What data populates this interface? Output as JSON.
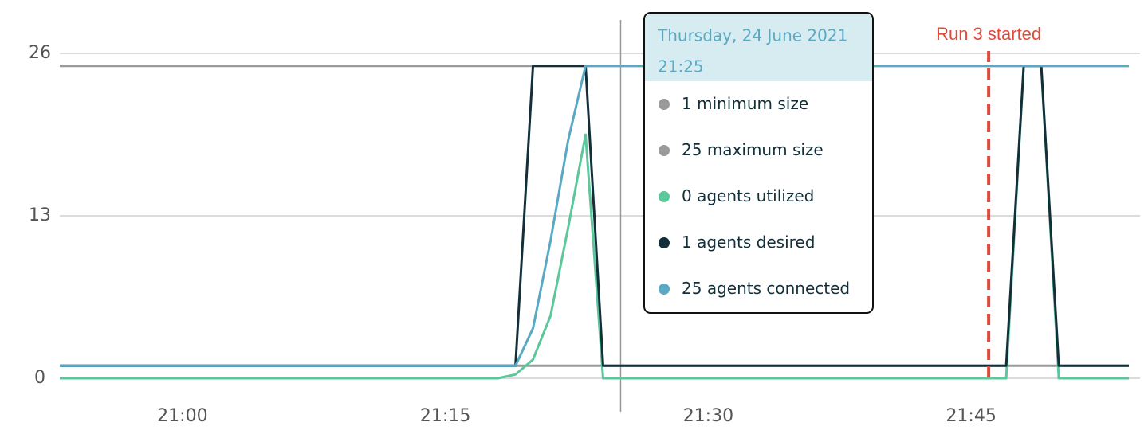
{
  "chart_data": {
    "type": "line",
    "x": [
      "20:53",
      "21:18",
      "21:19",
      "21:20",
      "21:21",
      "21:22",
      "21:23",
      "21:24",
      "21:25",
      "21:47",
      "21:48",
      "21:49",
      "21:50",
      "21:54"
    ],
    "series": [
      {
        "name": "minimum size",
        "color": "#9a9a9a",
        "values": [
          1,
          1,
          1,
          1,
          1,
          1,
          1,
          1,
          1,
          1,
          1,
          1,
          1,
          1
        ]
      },
      {
        "name": "maximum size",
        "color": "#9a9a9a",
        "values": [
          25,
          25,
          25,
          25,
          25,
          25,
          25,
          25,
          25,
          25,
          25,
          25,
          25,
          25
        ]
      },
      {
        "name": "agents utilized",
        "color": "#5cc79a",
        "values": [
          0,
          0,
          0.3,
          1.5,
          5,
          12,
          19.5,
          0,
          0,
          0,
          25,
          25,
          0,
          0
        ]
      },
      {
        "name": "agents desired",
        "color": "#13303a",
        "values": [
          1,
          1,
          1,
          25,
          25,
          25,
          25,
          1,
          1,
          1,
          25,
          25,
          1,
          1
        ]
      },
      {
        "name": "agents connected",
        "color": "#5aa9c4",
        "values": [
          1,
          1,
          1,
          4,
          11,
          19,
          25,
          25,
          25,
          25,
          25,
          25,
          25,
          25
        ]
      }
    ],
    "xlim": [
      "20:53",
      "21:54"
    ],
    "xticks": [
      "21:00",
      "21:15",
      "21:30",
      "21:45"
    ],
    "ylim": [
      0,
      26
    ],
    "yticks": [
      0,
      13,
      26
    ],
    "grid": true,
    "annotation": {
      "label": "Run 3 started",
      "x": "21:46",
      "color": "#e04a3a"
    },
    "tooltip": {
      "date": "Thursday, 24 June 2021",
      "time": "21:25",
      "items": [
        {
          "value": 1,
          "name": "minimum size"
        },
        {
          "value": 25,
          "name": "maximum size"
        },
        {
          "value": 0,
          "name": "agents utilized"
        },
        {
          "value": 1,
          "name": "agents desired"
        },
        {
          "value": 25,
          "name": "agents connected"
        }
      ]
    }
  }
}
